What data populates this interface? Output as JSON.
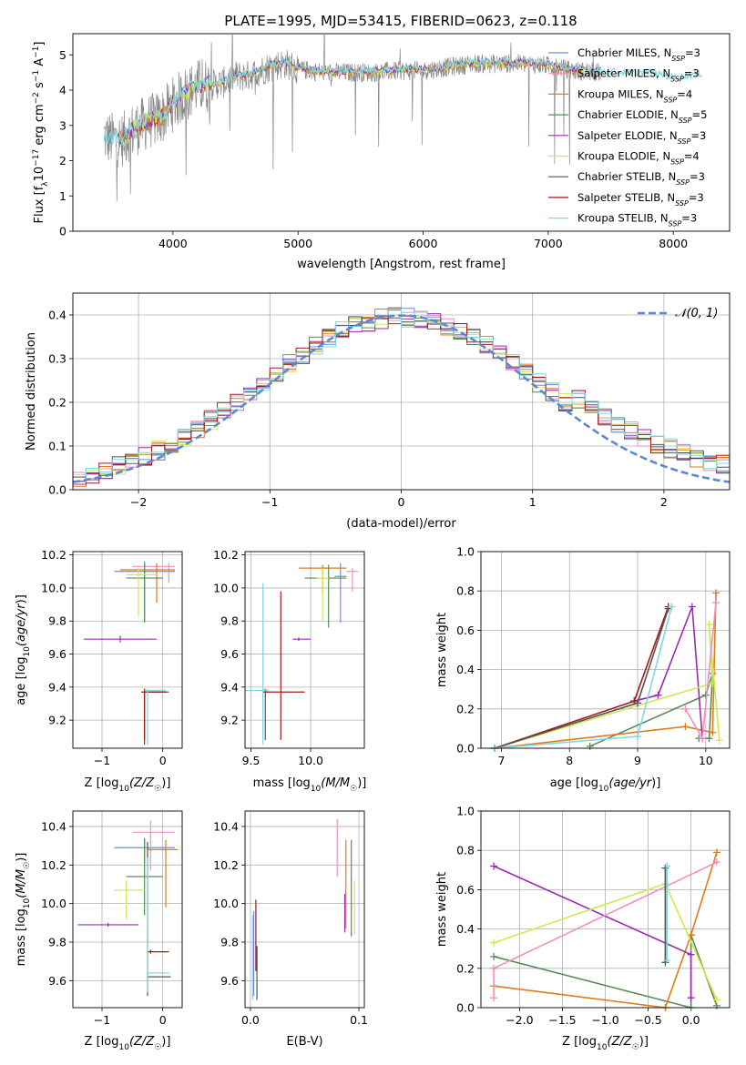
{
  "figure": {
    "title": "PLATE=1995, MJD=53415, FIBERID=0623, z=0.118"
  },
  "colors": {
    "chabrier_miles": "#6e8de0",
    "salpeter_miles": "#f28fbf",
    "kroupa_miles": "#e07b1a",
    "chabrier_elodie": "#5a8a5a",
    "salpeter_elodie": "#9a2bb0",
    "kroupa_elodie": "#d0ea4c",
    "chabrier_stelib": "#555555",
    "salpeter_stelib": "#a01818",
    "kroupa_stelib": "#7ed8e0",
    "data": "#888888",
    "gauss": "#5b87d6",
    "grid": "#b0b0b0"
  },
  "chart_data": [
    {
      "id": "spectrum",
      "type": "line",
      "xlabel": "wavelength [Angstrom, rest frame]",
      "ylabel": "Flux [f_λ 10^-17 erg cm^-2 s^-1 A^-1]",
      "xlim": [
        3200,
        8450
      ],
      "ylim": [
        0,
        5.6
      ],
      "xticks": [
        4000,
        5000,
        6000,
        7000,
        8000
      ],
      "yticks": [
        0,
        1,
        2,
        3,
        4,
        5
      ],
      "grid": false,
      "legend_position": "upper-right",
      "legend": [
        {
          "key": "chabrier_miles",
          "label": "Chabrier MILES, N",
          "sub": "SSP",
          "suffix": "=3"
        },
        {
          "key": "salpeter_miles",
          "label": "Salpeter MILES, N",
          "sub": "SSP",
          "suffix": "=3"
        },
        {
          "key": "kroupa_miles",
          "label": "Kroupa MILES, N",
          "sub": "SSP",
          "suffix": "=4"
        },
        {
          "key": "chabrier_elodie",
          "label": "Chabrier ELODIE, N",
          "sub": "SSP",
          "suffix": "=5"
        },
        {
          "key": "salpeter_elodie",
          "label": "Salpeter ELODIE, N",
          "sub": "SSP",
          "suffix": "=3"
        },
        {
          "key": "kroupa_elodie",
          "label": "Kroupa ELODIE, N",
          "sub": "SSP",
          "suffix": "=4"
        },
        {
          "key": "chabrier_stelib",
          "label": "Chabrier STELIB, N",
          "sub": "SSP",
          "suffix": "=3"
        },
        {
          "key": "salpeter_stelib",
          "label": "Salpeter STELIB, N",
          "sub": "SSP",
          "suffix": "=3"
        },
        {
          "key": "kroupa_stelib",
          "label": "Kroupa STELIB, N",
          "sub": "SSP",
          "suffix": "=3"
        }
      ],
      "continuum": {
        "x": [
          3450,
          3500,
          3600,
          3700,
          3800,
          3900,
          4000,
          4100,
          4200,
          4300,
          4400,
          4500,
          4600,
          4700,
          4800,
          4900,
          5000,
          5200,
          5400,
          5600,
          5800,
          6000,
          6200,
          6400,
          6600,
          6800,
          7000,
          7200,
          7400,
          7600,
          7800,
          8000,
          8200
        ],
        "y": [
          2.7,
          2.6,
          2.6,
          2.9,
          3.1,
          3.2,
          3.6,
          3.9,
          4.1,
          4.15,
          4.2,
          4.4,
          4.4,
          4.55,
          4.7,
          4.75,
          4.6,
          4.5,
          4.5,
          4.5,
          4.55,
          4.55,
          4.65,
          4.75,
          4.75,
          4.75,
          4.7,
          4.55,
          4.5,
          4.45,
          4.45,
          4.3,
          4.4
        ]
      },
      "data_range": [
        3450,
        7420
      ]
    },
    {
      "id": "residuals",
      "type": "line",
      "xlabel": "(data-model)/error",
      "ylabel": "Normed distribution",
      "xlim": [
        -2.5,
        2.5
      ],
      "ylim": [
        0,
        0.45
      ],
      "xticks": [
        -2,
        -1,
        0,
        1,
        2
      ],
      "yticks": [
        0.0,
        0.1,
        0.2,
        0.3,
        0.4
      ],
      "grid": true,
      "legend_position": "upper-right",
      "gauss_label": "𝒩(0, 1)",
      "bin_width": 0.1
    },
    {
      "id": "age_vs_Z",
      "type": "scatter",
      "xlabel": "Z [log10(Z/Z☉)]",
      "ylabel": "age  [log10(age/yr)]",
      "xlim": [
        -1.48,
        0.32
      ],
      "ylim": [
        9.03,
        10.22
      ],
      "xticks": [
        -1,
        0
      ],
      "yticks": [
        9.2,
        9.4,
        9.6,
        9.8,
        10.0,
        10.2
      ],
      "grid": true,
      "points": [
        {
          "model": "chabrier_miles",
          "x": -0.3,
          "xerr": [
            0.5,
            0.5
          ],
          "y": 10.1,
          "yerr": [
            0.3,
            0.06
          ]
        },
        {
          "model": "salpeter_miles",
          "x": 0.1,
          "xerr": [
            0.6,
            0.1
          ],
          "y": 10.13,
          "yerr": [
            0.1,
            0.02
          ]
        },
        {
          "model": "kroupa_miles",
          "x": -0.1,
          "xerr": [
            0.6,
            0.3
          ],
          "y": 10.11,
          "yerr": [
            0.2,
            0.04
          ]
        },
        {
          "model": "chabrier_elodie",
          "x": -0.3,
          "xerr": [
            0.3,
            0.3
          ],
          "y": 10.06,
          "yerr": [
            0.27,
            0.09
          ]
        },
        {
          "model": "salpeter_elodie",
          "x": -0.7,
          "xerr": [
            0.6,
            0.6
          ],
          "y": 9.69,
          "yerr": [
            0.02,
            0.02
          ]
        },
        {
          "model": "kroupa_elodie",
          "x": -0.4,
          "xerr": [
            0.2,
            0.3
          ],
          "y": 10.08,
          "yerr": [
            0.26,
            0.04
          ]
        },
        {
          "model": "chabrier_stelib",
          "x": -0.3,
          "xerr": [
            0.05,
            0.4
          ],
          "y": 9.37,
          "yerr": [
            0.32,
            0.02
          ]
        },
        {
          "model": "salpeter_stelib",
          "x": -0.3,
          "xerr": [
            0.05,
            0.35
          ],
          "y": 9.37,
          "yerr": [
            0.29,
            0.02
          ]
        },
        {
          "model": "kroupa_stelib",
          "x": -0.25,
          "xerr": [
            0.05,
            0.3
          ],
          "y": 9.38,
          "yerr": [
            0.33,
            0.01
          ]
        }
      ]
    },
    {
      "id": "age_vs_mass",
      "type": "scatter",
      "xlabel": "mass [log10(M/M☉)]",
      "ylabel": "",
      "xlim": [
        9.45,
        10.45
      ],
      "ylim": [
        9.03,
        10.22
      ],
      "xticks": [
        9.5,
        10.0
      ],
      "yticks": [
        9.2,
        9.4,
        9.6,
        9.8,
        10.0,
        10.2
      ],
      "grid": true,
      "points": [
        {
          "model": "chabrier_miles",
          "x": 10.25,
          "xerr": [
            0.05,
            0.05
          ],
          "y": 10.07,
          "yerr": [
            0.28,
            0.08
          ]
        },
        {
          "model": "salpeter_miles",
          "x": 10.35,
          "xerr": [
            0.05,
            0.05
          ],
          "y": 10.1,
          "yerr": [
            0.12,
            0.02
          ]
        },
        {
          "model": "kroupa_miles",
          "x": 10.1,
          "xerr": [
            0.2,
            0.2
          ],
          "y": 10.12,
          "yerr": [
            0.15,
            0.02
          ]
        },
        {
          "model": "chabrier_elodie",
          "x": 10.15,
          "xerr": [
            0.2,
            0.15
          ],
          "y": 10.06,
          "yerr": [
            0.3,
            0.08
          ]
        },
        {
          "model": "salpeter_elodie",
          "x": 9.9,
          "xerr": [
            0.05,
            0.1
          ],
          "y": 9.69,
          "yerr": [
            0.01,
            0.01
          ]
        },
        {
          "model": "kroupa_elodie",
          "x": 10.1,
          "xerr": [
            0.05,
            0.05
          ],
          "y": 10.06,
          "yerr": [
            0.26,
            0.06
          ]
        },
        {
          "model": "chabrier_stelib",
          "x": 9.62,
          "xerr": [
            0.02,
            0.02
          ],
          "y": 9.38,
          "yerr": [
            0.3,
            0.01
          ]
        },
        {
          "model": "salpeter_stelib",
          "x": 9.75,
          "xerr": [
            0.15,
            0.2
          ],
          "y": 9.37,
          "yerr": [
            0.29,
            0.61
          ]
        },
        {
          "model": "kroupa_stelib",
          "x": 9.6,
          "xerr": [
            0.15,
            0.05
          ],
          "y": 9.38,
          "yerr": [
            0.33,
            0.65
          ]
        }
      ]
    },
    {
      "id": "weight_vs_age",
      "type": "line",
      "xlabel": "age  [log10(age/yr)]",
      "ylabel": "mass weight",
      "xlim": [
        6.7,
        10.35
      ],
      "ylim": [
        0,
        1
      ],
      "xticks": [
        7,
        8,
        9,
        10
      ],
      "yticks": [
        0.0,
        0.2,
        0.4,
        0.6,
        0.8,
        1.0
      ],
      "grid": true,
      "series": [
        {
          "model": "chabrier_elodie",
          "x": [
            8.3,
            10.0,
            10.1,
            10.05,
            9.9
          ],
          "y": [
            0.01,
            0.27,
            0.38,
            0.05,
            0.05
          ]
        },
        {
          "model": "kroupa_miles",
          "x": [
            6.9,
            9.7,
            10.1,
            10.15
          ],
          "y": [
            0.0,
            0.11,
            0.08,
            0.79
          ]
        },
        {
          "model": "salpeter_elodie",
          "x": [
            8.95,
            9.3,
            9.8,
            9.95
          ],
          "y": [
            0.24,
            0.27,
            0.72,
            0.05
          ]
        },
        {
          "model": "kroupa_elodie",
          "x": [
            6.9,
            10.1,
            10.05,
            10.2
          ],
          "y": [
            0.0,
            0.33,
            0.63,
            0.04
          ]
        },
        {
          "model": "salpeter_miles",
          "x": [
            9.7,
            9.95,
            10.15
          ],
          "y": [
            0.2,
            0.05,
            0.74
          ]
        },
        {
          "model": "salpeter_stelib",
          "x": [
            6.9,
            8.95,
            9.45
          ],
          "y": [
            0.0,
            0.24,
            0.72
          ]
        },
        {
          "model": "chabrier_stelib",
          "x": [
            6.9,
            9.0,
            9.45
          ],
          "y": [
            0.0,
            0.23,
            0.71
          ]
        },
        {
          "model": "kroupa_stelib",
          "x": [
            6.9,
            9.0,
            9.5
          ],
          "y": [
            0.0,
            0.06,
            0.72
          ]
        }
      ]
    },
    {
      "id": "mass_vs_Z",
      "type": "scatter",
      "xlabel": "Z [log10(Z/Z☉)]",
      "ylabel": "mass [log10(M/M☉)]",
      "xlim": [
        -1.48,
        0.32
      ],
      "ylim": [
        9.46,
        10.48
      ],
      "xticks": [
        -1,
        0
      ],
      "yticks": [
        9.6,
        9.8,
        10.0,
        10.2,
        10.4
      ],
      "grid": true,
      "points": [
        {
          "model": "chabrier_miles",
          "x": -0.3,
          "xerr": [
            0.5,
            0.5
          ],
          "y": 10.29,
          "yerr": [
            0.08,
            0.04
          ]
        },
        {
          "model": "salpeter_miles",
          "x": -0.2,
          "xerr": [
            0.3,
            0.4
          ],
          "y": 10.37,
          "yerr": [
            0.2,
            0.06
          ]
        },
        {
          "model": "kroupa_miles",
          "x": 0.05,
          "xerr": [
            0.3,
            0.2
          ],
          "y": 10.28,
          "yerr": [
            0.3,
            0.05
          ]
        },
        {
          "model": "chabrier_elodie",
          "x": -0.3,
          "xerr": [
            0.3,
            0.3
          ],
          "y": 10.14,
          "yerr": [
            0.2,
            0.2
          ]
        },
        {
          "model": "salpeter_elodie",
          "x": -0.9,
          "xerr": [
            0.5,
            0.5
          ],
          "y": 9.89,
          "yerr": [
            0.01,
            0.01
          ]
        },
        {
          "model": "kroupa_elodie",
          "x": -0.6,
          "xerr": [
            0.2,
            0.3
          ],
          "y": 10.07,
          "yerr": [
            0.15,
            0.05
          ]
        },
        {
          "model": "chabrier_stelib",
          "x": -0.25,
          "xerr": [
            0.01,
            0.38
          ],
          "y": 9.62,
          "yerr": [
            0.1,
            0.7
          ]
        },
        {
          "model": "salpeter_stelib",
          "x": -0.2,
          "xerr": [
            0.05,
            0.3
          ],
          "y": 9.75,
          "yerr": [
            0.01,
            0.01
          ]
        },
        {
          "model": "kroupa_stelib",
          "x": -0.25,
          "xerr": [
            0.01,
            0.35
          ],
          "y": 9.64,
          "yerr": [
            0.1,
            0.6
          ]
        }
      ]
    },
    {
      "id": "mass_vs_ebv",
      "type": "scatter",
      "xlabel": "E(B-V)",
      "ylabel": "",
      "xlim": [
        -0.005,
        0.105
      ],
      "ylim": [
        9.46,
        10.48
      ],
      "xticks": [
        0.0,
        0.1
      ],
      "yticks": [
        9.6,
        9.8,
        10.0,
        10.2,
        10.4
      ],
      "grid": true,
      "points": [
        {
          "model": "chabrier_miles",
          "x": 0.003,
          "xerr": [
            0,
            0
          ],
          "y": 9.74,
          "yerr": [
            0.22,
            0.22
          ]
        },
        {
          "model": "salpeter_miles",
          "x": 0.08,
          "xerr": [
            0,
            0
          ],
          "y": 10.29,
          "yerr": [
            0.15,
            0.15
          ]
        },
        {
          "model": "kroupa_miles",
          "x": 0.088,
          "xerr": [
            0,
            0
          ],
          "y": 10.0,
          "yerr": [
            0.13,
            0.33
          ]
        },
        {
          "model": "chabrier_elodie",
          "x": 0.093,
          "xerr": [
            0,
            0
          ],
          "y": 10.08,
          "yerr": [
            0.25,
            0.25
          ]
        },
        {
          "model": "salpeter_elodie",
          "x": 0.087,
          "xerr": [
            0,
            0
          ],
          "y": 9.95,
          "yerr": [
            0.1,
            0.1
          ]
        },
        {
          "model": "kroupa_elodie",
          "x": 0.096,
          "xerr": [
            0,
            0
          ],
          "y": 9.98,
          "yerr": [
            0.14,
            0.14
          ]
        },
        {
          "model": "chabrier_stelib",
          "x": 0.006,
          "xerr": [
            0,
            0
          ],
          "y": 9.68,
          "yerr": [
            0.18,
            0.1
          ]
        },
        {
          "model": "salpeter_stelib",
          "x": 0.005,
          "xerr": [
            0,
            0
          ],
          "y": 9.85,
          "yerr": [
            0.2,
            0.17
          ]
        },
        {
          "model": "kroupa_stelib",
          "x": 0.002,
          "xerr": [
            0,
            0
          ],
          "y": 9.72,
          "yerr": [
            0.22,
            0.22
          ]
        }
      ]
    },
    {
      "id": "weight_vs_Z",
      "type": "line",
      "xlabel": "Z [log10(Z/Z☉)]",
      "ylabel": "mass weight",
      "xlim": [
        -2.45,
        0.45
      ],
      "ylim": [
        0,
        1
      ],
      "xticks": [
        -2.0,
        -1.5,
        -1.0,
        -0.5,
        0.0
      ],
      "yticks": [
        0.0,
        0.2,
        0.4,
        0.6,
        0.8,
        1.0
      ],
      "grid": true,
      "series": [
        {
          "model": "chabrier_elodie",
          "x": [
            -2.3,
            0.0,
            0.0,
            0.3
          ],
          "y": [
            0.26,
            0.0,
            0.37,
            0.01
          ]
        },
        {
          "model": "kroupa_miles",
          "x": [
            -2.3,
            -0.3,
            0.0,
            0.3
          ],
          "y": [
            0.11,
            0.0,
            0.37,
            0.79
          ]
        },
        {
          "model": "salpeter_elodie",
          "x": [
            -2.3,
            0.0,
            0.0
          ],
          "y": [
            0.72,
            0.27,
            0.05
          ]
        },
        {
          "model": "kroupa_elodie",
          "x": [
            -2.3,
            -0.3,
            0.3
          ],
          "y": [
            0.33,
            0.63,
            0.04
          ]
        },
        {
          "model": "salpeter_miles",
          "x": [
            -2.3,
            -2.3,
            0.3
          ],
          "y": [
            0.05,
            0.2,
            0.74
          ]
        },
        {
          "model": "chabrier_stelib",
          "x": [
            -0.3,
            -0.3
          ],
          "y": [
            0.23,
            0.71
          ]
        },
        {
          "model": "kroupa_stelib",
          "x": [
            -0.28,
            -0.28
          ],
          "y": [
            0.24,
            0.72
          ]
        }
      ]
    }
  ]
}
